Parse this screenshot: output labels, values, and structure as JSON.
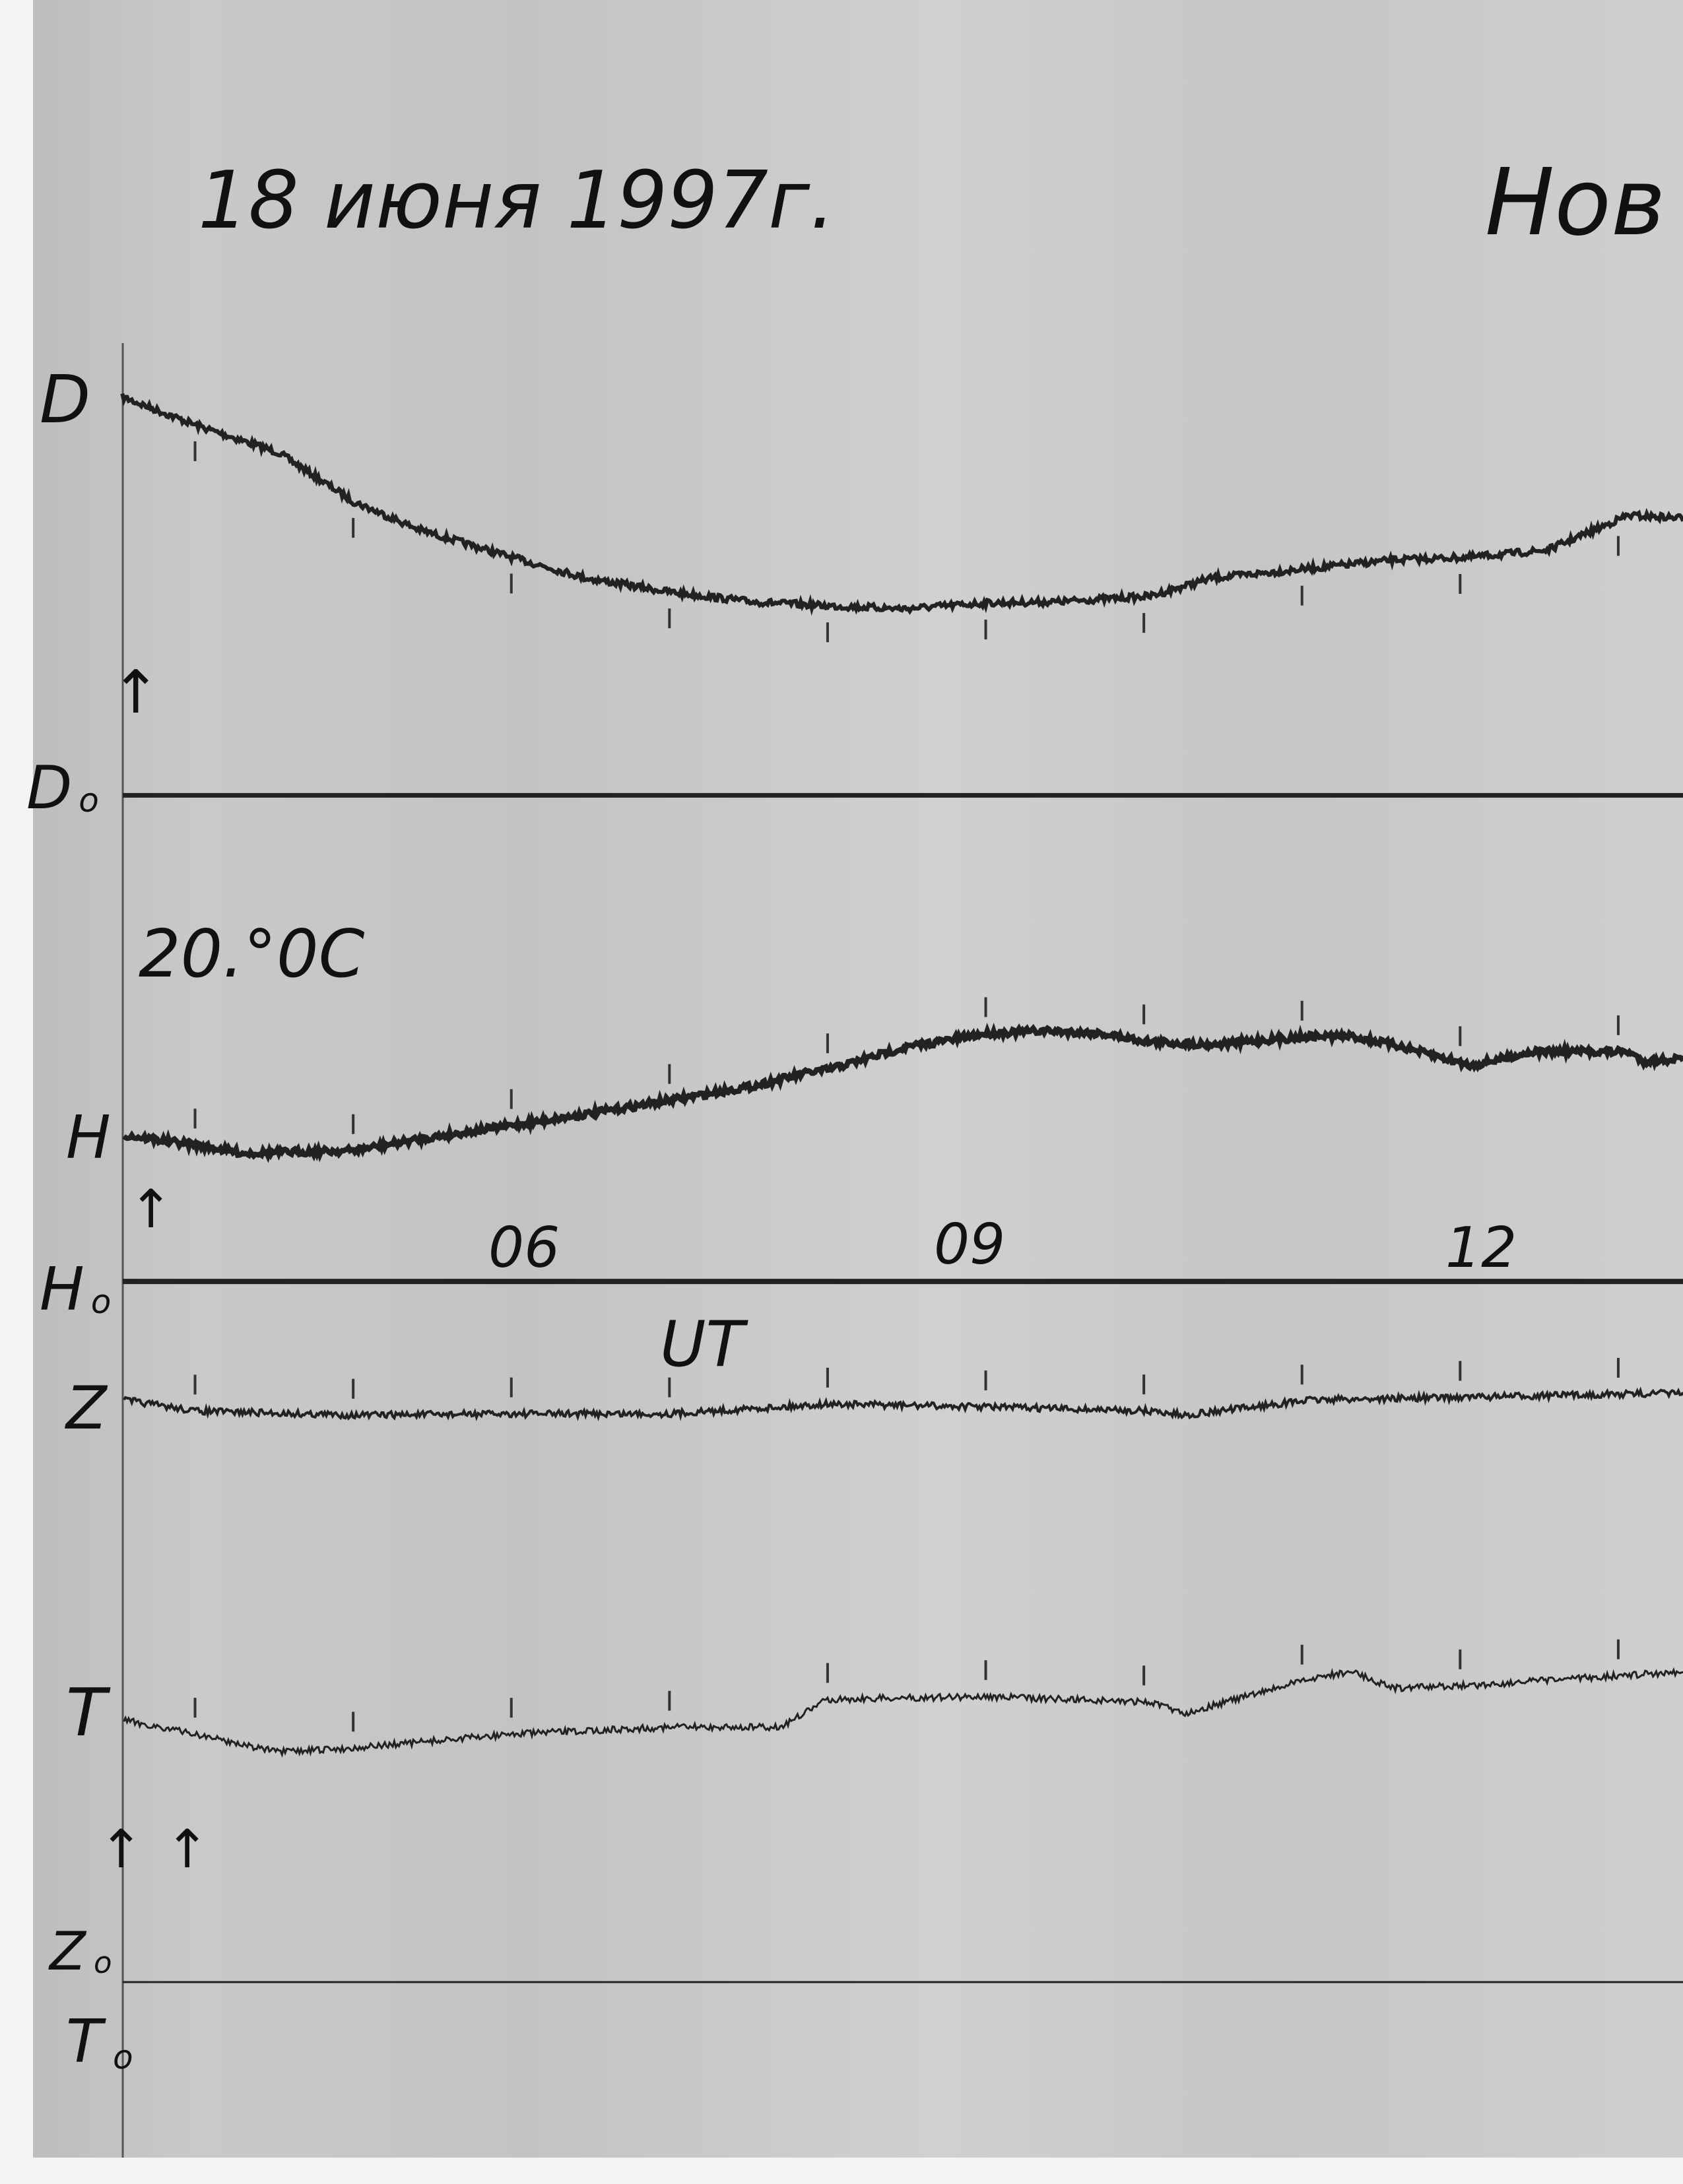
{
  "header": {
    "date": "18 июня 1997г.",
    "station_partial": "Нов"
  },
  "temperature_note": "20.°0C",
  "chart_data": {
    "type": "line",
    "title": "18 июня 1997г.",
    "xlabel": "UT",
    "x_ticks": [
      "06",
      "09",
      "12"
    ],
    "x_tick_values": [
      6,
      9,
      12
    ],
    "xlim": [
      3.54,
      13.41
    ],
    "grid": false,
    "y_units": "arbitrary trace deflection above baseline",
    "hour_marks": [
      4,
      5,
      6,
      7,
      8,
      9,
      10,
      11,
      12,
      13
    ],
    "series": [
      {
        "name": "D",
        "baseline": "D₀",
        "x": [
          3.54,
          4.0,
          4.53,
          5.0,
          5.41,
          6.0,
          6.47,
          7.0,
          7.52,
          8.0,
          8.49,
          9.0,
          9.46,
          10.04,
          10.43,
          11.06,
          11.58,
          12.07,
          12.55,
          12.9,
          13.06,
          13.41
        ],
        "y": [
          28.6,
          26.6,
          24.6,
          21.1,
          19.1,
          17.1,
          15.6,
          14.6,
          13.9,
          13.6,
          13.4,
          13.8,
          13.9,
          14.3,
          15.6,
          16.3,
          16.9,
          17.1,
          17.6,
          19.3,
          20.1,
          19.9
        ]
      },
      {
        "name": "H",
        "baseline": "H₀",
        "x": [
          3.55,
          4.0,
          4.31,
          5.0,
          5.41,
          6.0,
          6.47,
          7.0,
          7.52,
          7.88,
          8.0,
          8.49,
          9.0,
          9.37,
          9.73,
          10.04,
          10.43,
          11.06,
          11.31,
          11.58,
          12.07,
          12.46,
          13.06,
          13.16,
          13.41
        ],
        "y": [
          10.5,
          9.8,
          9.2,
          9.4,
          10.2,
          11.2,
          12.0,
          13.0,
          14.0,
          15.0,
          15.2,
          16.8,
          17.8,
          18.0,
          17.8,
          17.2,
          17.0,
          17.6,
          17.6,
          17.0,
          15.5,
          16.5,
          16.5,
          15.8,
          16.0
        ]
      },
      {
        "name": "Z",
        "baseline": "Z₀",
        "x": [
          3.55,
          4.0,
          5.0,
          6.0,
          7.0,
          8.0,
          9.0,
          10.04,
          10.26,
          11.06,
          12.07,
          13.41
        ],
        "y": [
          41.8,
          41.0,
          40.7,
          40.8,
          40.8,
          41.5,
          41.3,
          41.0,
          40.7,
          41.8,
          42.0,
          42.3
        ]
      },
      {
        "name": "T",
        "baseline": "T₀",
        "x": [
          3.55,
          4.0,
          4.53,
          5.0,
          6.0,
          7.0,
          7.7,
          8.0,
          9.0,
          10.04,
          10.26,
          11.06,
          11.31,
          11.58,
          12.07,
          13.41
        ],
        "y": [
          18.8,
          17.8,
          16.5,
          16.8,
          17.8,
          18.3,
          18.3,
          20.3,
          20.5,
          20.1,
          19.3,
          21.8,
          22.3,
          21.1,
          21.3,
          22.3
        ]
      }
    ]
  },
  "labels": {
    "D": "D",
    "D0": "D",
    "H": "H",
    "H0": "H",
    "Z": "Z",
    "T": "T",
    "Z0": "Z",
    "T0": "T",
    "sub": "o",
    "arrow": "↑"
  }
}
